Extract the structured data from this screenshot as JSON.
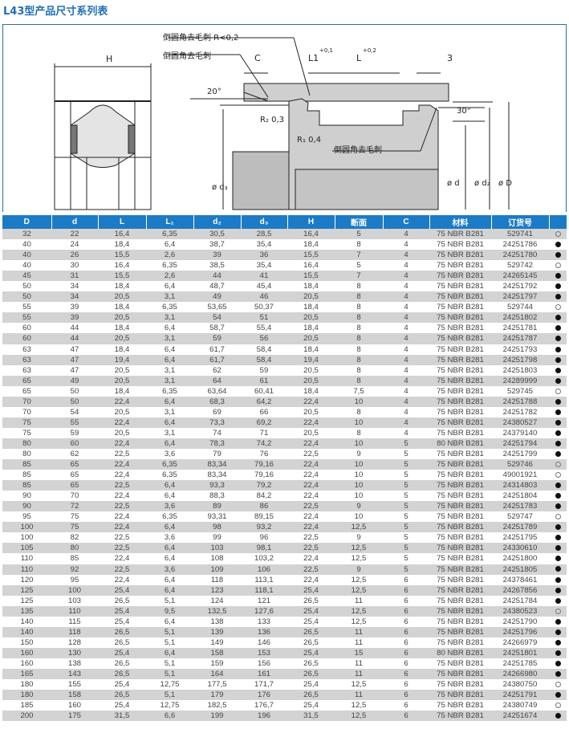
{
  "title": "L43型产品尺寸系列表",
  "diagram": {
    "labels": {
      "chamfer_r": "倒圆角去毛刺  R<0,2",
      "chamfer1": "倒圆角去毛刺",
      "chamfer2": "倒圆角去毛刺",
      "H": "H",
      "C": "C",
      "L1": "L1",
      "L1_tol": "+0,1",
      "L": "L",
      "L_tol": "+0,2",
      "three": "3",
      "angle20": "20°",
      "angle30": "30°",
      "R2": "R₂ 0,3",
      "R1": "R₁ 0,4",
      "d3": "ø d₃",
      "d": "ø  d",
      "d2": "ø d₂",
      "D": "ø  D"
    }
  },
  "table": {
    "headers": [
      "D",
      "d",
      "L",
      "L₁",
      "d₂",
      "d₃",
      "H",
      "断面",
      "C",
      "材料",
      "订货号",
      ""
    ],
    "rows": [
      [
        "32",
        "22",
        "16,4",
        "6,35",
        "30,5",
        "28,5",
        "16,4",
        "5",
        "4",
        "75 NBR B281",
        "529741",
        false
      ],
      [
        "40",
        "24",
        "18,4",
        "6,4",
        "38,7",
        "35,4",
        "18,4",
        "8",
        "4",
        "75 NBR B281",
        "24251786",
        true
      ],
      [
        "40",
        "26",
        "15,5",
        "2,6",
        "39",
        "36",
        "15,5",
        "7",
        "4",
        "75 NBR B281",
        "24251780",
        true
      ],
      [
        "40",
        "30",
        "16,4",
        "6,35",
        "38,5",
        "35,4",
        "16,4",
        "5",
        "4",
        "75 NBR B281",
        "529742",
        false
      ],
      [
        "45",
        "31",
        "15,5",
        "2,6",
        "44",
        "41",
        "15,5",
        "7",
        "4",
        "75 NBR B281",
        "24265145",
        true
      ],
      [
        "50",
        "34",
        "18,4",
        "6,4",
        "48,7",
        "45,4",
        "18,4",
        "8",
        "4",
        "75 NBR B281",
        "24251792",
        true
      ],
      [
        "50",
        "34",
        "20,5",
        "3,1",
        "49",
        "46",
        "20,5",
        "8",
        "4",
        "75 NBR B281",
        "24251797",
        true
      ],
      [
        "55",
        "39",
        "18,4",
        "6,35",
        "53,65",
        "50,37",
        "18,4",
        "8",
        "4",
        "75 NBR B281",
        "529744",
        false
      ],
      [
        "55",
        "39",
        "20,5",
        "3,1",
        "54",
        "51",
        "20,5",
        "8",
        "4",
        "75 NBR B281",
        "24251802",
        true
      ],
      [
        "60",
        "44",
        "18,4",
        "6,4",
        "58,7",
        "55,4",
        "18,4",
        "8",
        "4",
        "75 NBR B281",
        "24251781",
        true
      ],
      [
        "60",
        "44",
        "20,5",
        "3,1",
        "59",
        "56",
        "20,5",
        "8",
        "4",
        "75 NBR B281",
        "24251787",
        true
      ],
      [
        "63",
        "47",
        "18,4",
        "6,4",
        "61,7",
        "58,4",
        "18,4",
        "8",
        "4",
        "75 NBR B281",
        "24251793",
        true
      ],
      [
        "63",
        "47",
        "19,4",
        "6,4",
        "61,7",
        "58,4",
        "19,4",
        "8",
        "4",
        "75 NBR B281",
        "24251798",
        true
      ],
      [
        "63",
        "47",
        "20,5",
        "3,1",
        "62",
        "59",
        "20,5",
        "8",
        "4",
        "75 NBR B281",
        "24251803",
        true
      ],
      [
        "65",
        "49",
        "20,5",
        "3,1",
        "64",
        "61",
        "20,5",
        "8",
        "4",
        "75 NBR B281",
        "24289999",
        true
      ],
      [
        "65",
        "50",
        "18,4",
        "6,35",
        "63,64",
        "60,41",
        "18,4",
        "7,5",
        "4",
        "75 NBR B281",
        "529745",
        false
      ],
      [
        "70",
        "50",
        "22,4",
        "6,4",
        "68,3",
        "64,2",
        "22,4",
        "10",
        "4",
        "75 NBR B281",
        "24251788",
        true
      ],
      [
        "70",
        "54",
        "20,5",
        "3,1",
        "69",
        "66",
        "20,5",
        "8",
        "4",
        "75 NBR B281",
        "24251782",
        true
      ],
      [
        "75",
        "55",
        "22,4",
        "6,4",
        "73,3",
        "69,2",
        "22,4",
        "10",
        "4",
        "75 NBR B281",
        "24380527",
        true
      ],
      [
        "75",
        "59",
        "20,5",
        "3,1",
        "74",
        "71",
        "20,5",
        "8",
        "4",
        "75 NBR B281",
        "24379140",
        true
      ],
      [
        "80",
        "60",
        "22,4",
        "6,4",
        "78,3",
        "74,2",
        "22,4",
        "10",
        "5",
        "80 NBR B281",
        "24251794",
        true
      ],
      [
        "80",
        "62",
        "22,5",
        "3,6",
        "79",
        "76",
        "22,5",
        "9",
        "5",
        "75 NBR B281",
        "24251799",
        true
      ],
      [
        "85",
        "65",
        "22,4",
        "6,35",
        "83,34",
        "79,16",
        "22,4",
        "10",
        "5",
        "75 NBR B281",
        "529746",
        false
      ],
      [
        "85",
        "65",
        "22,4",
        "6,35",
        "83,34",
        "79,16",
        "22,4",
        "10",
        "5",
        "75 NBR B281",
        "49001921",
        false
      ],
      [
        "85",
        "65",
        "22,5",
        "6,4",
        "93,3",
        "79,2",
        "22,4",
        "10",
        "5",
        "75 NBR B281",
        "24314803",
        true
      ],
      [
        "90",
        "70",
        "22,4",
        "6,4",
        "88,3",
        "84,2",
        "22,4",
        "10",
        "5",
        "75 NBR B281",
        "24251804",
        true
      ],
      [
        "90",
        "72",
        "22,5",
        "3,6",
        "89",
        "86",
        "22,5",
        "9",
        "5",
        "75 NBR B281",
        "24251783",
        true
      ],
      [
        "95",
        "75",
        "22,4",
        "6,35",
        "93,31",
        "89,15",
        "22,4",
        "10",
        "5",
        "75 NBR B281",
        "529747",
        false
      ],
      [
        "100",
        "75",
        "22,4",
        "6,4",
        "98",
        "93,2",
        "22,4",
        "12,5",
        "5",
        "75 NBR B281",
        "24251789",
        true
      ],
      [
        "100",
        "82",
        "22,5",
        "3,6",
        "99",
        "96",
        "22,5",
        "9",
        "5",
        "75 NBR B281",
        "24251795",
        true
      ],
      [
        "105",
        "80",
        "22,5",
        "6,4",
        "103",
        "98,1",
        "22,5",
        "12,5",
        "5",
        "75 NBR B281",
        "24330610",
        true
      ],
      [
        "110",
        "85",
        "22,4",
        "6,4",
        "108",
        "103,2",
        "22,4",
        "12,5",
        "5",
        "75 NBR B281",
        "24251800",
        true
      ],
      [
        "110",
        "92",
        "22,5",
        "3,6",
        "109",
        "106",
        "22,5",
        "9",
        "5",
        "75 NBR B281",
        "24251805",
        true
      ],
      [
        "120",
        "95",
        "22,4",
        "6,4",
        "118",
        "113,1",
        "22,4",
        "12,5",
        "6",
        "75 NBR B281",
        "24378461",
        true
      ],
      [
        "125",
        "100",
        "25,4",
        "6,4",
        "123",
        "118,1",
        "25,4",
        "12,5",
        "6",
        "75 NBR B281",
        "24267856",
        true
      ],
      [
        "125",
        "103",
        "26,5",
        "5,1",
        "124",
        "121",
        "26,5",
        "11",
        "6",
        "75 NBR B281",
        "24251784",
        true
      ],
      [
        "135",
        "110",
        "25,4",
        "9,5",
        "132,5",
        "127,6",
        "25,4",
        "12,5",
        "6",
        "75 NBR B281",
        "24380523",
        false
      ],
      [
        "140",
        "115",
        "25,4",
        "6,4",
        "138",
        "133",
        "25,4",
        "12,5",
        "6",
        "75 NBR B281",
        "24251790",
        true
      ],
      [
        "140",
        "118",
        "26,5",
        "5,1",
        "139",
        "136",
        "26,5",
        "11",
        "6",
        "75 NBR B281",
        "24251796",
        true
      ],
      [
        "150",
        "128",
        "26,5",
        "5,1",
        "149",
        "146",
        "26,5",
        "11",
        "6",
        "75 NBR B281",
        "24266979",
        true
      ],
      [
        "160",
        "130",
        "25,4",
        "6,4",
        "158",
        "153",
        "25,4",
        "15",
        "6",
        "80 NBR B281",
        "24251801",
        true
      ],
      [
        "160",
        "138",
        "26,5",
        "5,1",
        "159",
        "156",
        "26,5",
        "11",
        "6",
        "75 NBR B281",
        "24251785",
        true
      ],
      [
        "165",
        "143",
        "26,5",
        "5,1",
        "164",
        "161",
        "26,5",
        "11",
        "6",
        "75 NBR B281",
        "24266980",
        true
      ],
      [
        "180",
        "155",
        "25,4",
        "12,75",
        "177,5",
        "171,7",
        "25,4",
        "12,5",
        "6",
        "75 NBR B281",
        "24380750",
        false
      ],
      [
        "180",
        "158",
        "26,5",
        "5,1",
        "179",
        "176",
        "26,5",
        "11",
        "6",
        "75 NBR B281",
        "24251791",
        true
      ],
      [
        "185",
        "160",
        "25,4",
        "12,75",
        "182,5",
        "176,7",
        "25,4",
        "12,5",
        "6",
        "75 NBR B281",
        "24380749",
        false
      ],
      [
        "200",
        "175",
        "31,5",
        "6,6",
        "199",
        "196",
        "31,5",
        "12,5",
        "6",
        "75 NBR B281",
        "24251674",
        true
      ]
    ]
  }
}
